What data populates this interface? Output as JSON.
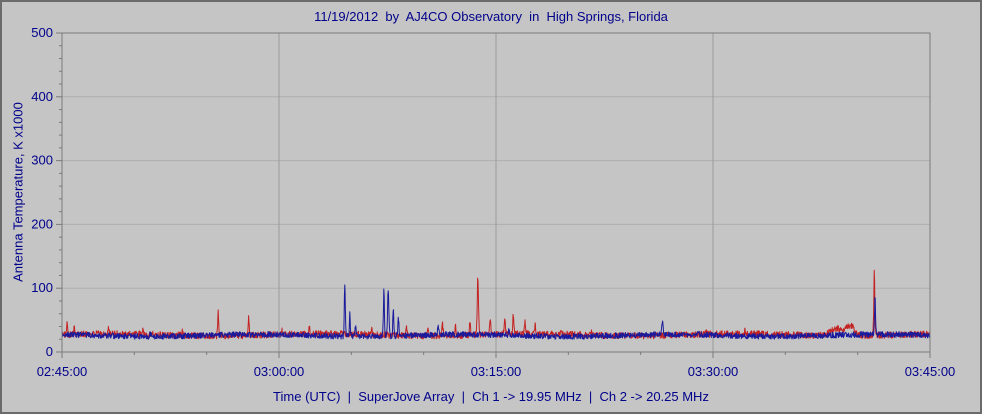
{
  "window": {
    "bg": "#c5c5c5",
    "border": "#6b6b6b"
  },
  "chart_data": {
    "type": "line",
    "title": "11/19/2012  by  AJ4CO Observatory  in  High Springs, Florida",
    "ylabel": "Antenna Temperature, K x1000",
    "xlabel": "Time (UTC)  |  SuperJove Array  |  Ch 1 -> 19.95 MHz  |  Ch 2 -> 20.25 MHz",
    "text_color": "#00008b",
    "plot_bg": "#c5c5c5",
    "axis_color": "#7a7a7a",
    "grid_color_v": "#9a9a9a",
    "grid_color_h": "#aeaeae",
    "legend_position": "none",
    "grid": true,
    "ylim": [
      0,
      500
    ],
    "y_ticks": [
      0,
      100,
      200,
      300,
      400,
      500
    ],
    "y_minor_step": 20,
    "x_ticks": [
      "02:45:00",
      "03:00:00",
      "03:15:00",
      "03:30:00",
      "03:45:00"
    ],
    "x_minor_step_minutes": 5,
    "duration_minutes": 60,
    "series": [
      {
        "name": "Ch 1 -> 19.95 MHz",
        "color": "#c42222",
        "seed": 101,
        "baseline": 27,
        "noise": 5,
        "spikes": [
          {
            "t": 0.35,
            "peak": 48,
            "w": 0.05
          },
          {
            "t": 0.85,
            "peak": 40,
            "w": 0.05
          },
          {
            "t": 3.2,
            "peak": 34,
            "w": 0.05
          },
          {
            "t": 5.6,
            "peak": 33,
            "w": 0.05
          },
          {
            "t": 8.3,
            "peak": 34,
            "w": 0.05
          },
          {
            "t": 10.8,
            "peak": 63,
            "w": 0.05
          },
          {
            "t": 12.9,
            "peak": 56,
            "w": 0.05
          },
          {
            "t": 15.2,
            "peak": 34,
            "w": 0.05
          },
          {
            "t": 17.1,
            "peak": 36,
            "w": 0.05
          },
          {
            "t": 21.4,
            "peak": 37,
            "w": 0.05
          },
          {
            "t": 23.8,
            "peak": 41,
            "w": 0.05
          },
          {
            "t": 25.3,
            "peak": 44,
            "w": 0.05
          },
          {
            "t": 26.3,
            "peak": 47,
            "w": 0.06
          },
          {
            "t": 27.2,
            "peak": 42,
            "w": 0.05
          },
          {
            "t": 28.2,
            "peak": 48,
            "w": 0.05
          },
          {
            "t": 28.75,
            "peak": 113,
            "w": 0.06
          },
          {
            "t": 29.6,
            "peak": 55,
            "w": 0.05
          },
          {
            "t": 30.6,
            "peak": 50,
            "w": 0.06
          },
          {
            "t": 31.2,
            "peak": 58,
            "w": 0.05
          },
          {
            "t": 32.0,
            "peak": 46,
            "w": 0.05
          },
          {
            "t": 32.7,
            "peak": 40,
            "w": 0.05
          },
          {
            "t": 34.5,
            "peak": 36,
            "w": 0.05
          },
          {
            "t": 36.6,
            "peak": 34,
            "w": 0.05
          },
          {
            "t": 44.5,
            "peak": 34,
            "w": 0.05
          },
          {
            "t": 47.2,
            "peak": 33,
            "w": 0.05
          },
          {
            "t": 53.6,
            "peak": 39,
            "w": 0.6
          },
          {
            "t": 54.5,
            "peak": 42,
            "w": 0.35
          },
          {
            "t": 56.15,
            "peak": 130,
            "w": 0.05
          }
        ]
      },
      {
        "name": "Ch 2 -> 20.25 MHz",
        "color": "#1a1a9c",
        "seed": 202,
        "baseline": 26,
        "noise": 4.5,
        "spikes": [
          {
            "t": 6.1,
            "peak": 32,
            "w": 0.05
          },
          {
            "t": 19.55,
            "peak": 110,
            "w": 0.05
          },
          {
            "t": 19.9,
            "peak": 60,
            "w": 0.05
          },
          {
            "t": 20.3,
            "peak": 45,
            "w": 0.05
          },
          {
            "t": 22.25,
            "peak": 96,
            "w": 0.05
          },
          {
            "t": 22.55,
            "peak": 100,
            "w": 0.06
          },
          {
            "t": 22.9,
            "peak": 68,
            "w": 0.05
          },
          {
            "t": 23.25,
            "peak": 52,
            "w": 0.05
          },
          {
            "t": 26.0,
            "peak": 40,
            "w": 0.05
          },
          {
            "t": 30.9,
            "peak": 36,
            "w": 0.05
          },
          {
            "t": 41.5,
            "peak": 46,
            "w": 0.06
          },
          {
            "t": 44.0,
            "peak": 33,
            "w": 0.05
          },
          {
            "t": 56.2,
            "peak": 82,
            "w": 0.05
          }
        ]
      }
    ]
  }
}
